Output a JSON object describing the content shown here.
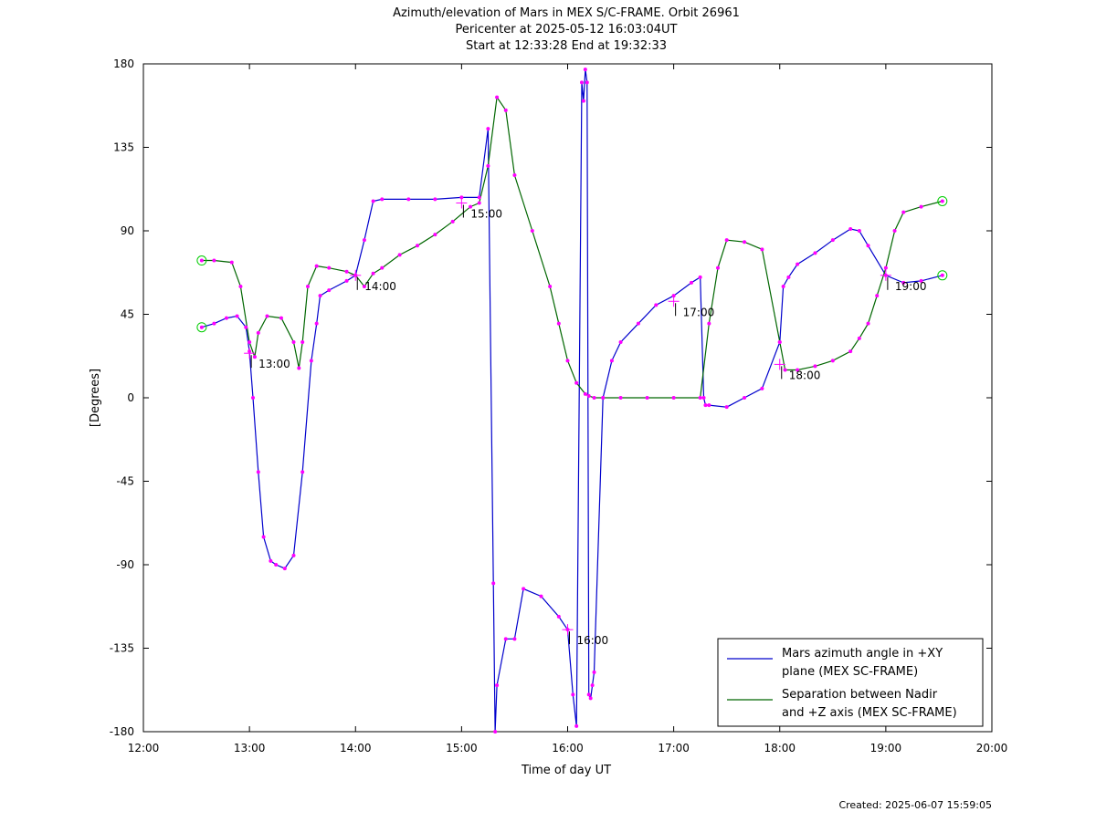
{
  "footer": {
    "created": "Created: 2025-06-07 15:59:05"
  },
  "colors": {
    "azimuth": "#0000cc",
    "separation": "#006600",
    "marker": "#ff00ff",
    "endpoint": "#00cc00"
  },
  "chart_data": {
    "type": "line",
    "title": [
      "Azimuth/elevation of Mars in MEX S/C-FRAME.  Orbit 26961",
      "Pericenter at 2025-05-12 16:03:04UT",
      "Start at 12:33:28 End at 19:32:33"
    ],
    "xlabel": "Time of day UT",
    "ylabel": "[Degrees]",
    "xlim": [
      "12:00",
      "20:00"
    ],
    "ylim": [
      -180,
      180
    ],
    "xticks": [
      "12:00",
      "13:00",
      "14:00",
      "15:00",
      "16:00",
      "17:00",
      "18:00",
      "19:00",
      "20:00"
    ],
    "yticks": [
      "180",
      "135",
      "90",
      "45",
      "0",
      "-45",
      "-90",
      "-135",
      "-180"
    ],
    "grid": false,
    "legend": "bottom-right",
    "series": [
      {
        "name": "Mars azimuth angle in +XY plane (MEX SC-FRAME)",
        "legend_lines": [
          "Mars azimuth angle in +XY",
          "plane (MEX SC-FRAME)"
        ],
        "x": [
          "12:33",
          "12:40",
          "12:47",
          "12:53",
          "12:58",
          "13:00",
          "13:02",
          "13:05",
          "13:08",
          "13:12",
          "13:15",
          "13:20",
          "13:25",
          "13:30",
          "13:35",
          "13:38",
          "13:40",
          "13:45",
          "13:55",
          "14:00",
          "14:05",
          "14:10",
          "14:15",
          "14:30",
          "14:45",
          "15:00",
          "15:10",
          "15:15",
          "15:18",
          "15:19",
          "15:20",
          "15:25",
          "15:30",
          "15:35",
          "15:45",
          "15:55",
          "16:00",
          "16:03",
          "16:05",
          "16:08",
          "16:09",
          "16:10",
          "16:11",
          "16:12",
          "16:13",
          "16:14",
          "16:15",
          "16:20",
          "16:25",
          "16:30",
          "16:40",
          "16:50",
          "17:00",
          "17:10",
          "17:15",
          "17:17",
          "17:18",
          "17:20",
          "17:30",
          "17:40",
          "17:50",
          "18:00",
          "18:02",
          "18:05",
          "18:10",
          "18:20",
          "18:30",
          "18:40",
          "18:45",
          "18:50",
          "19:00",
          "19:10",
          "19:20",
          "19:32"
        ],
        "y": [
          38,
          40,
          43,
          44,
          38,
          25,
          0,
          -40,
          -75,
          -88,
          -90,
          -92,
          -85,
          -40,
          20,
          40,
          55,
          58,
          63,
          66,
          85,
          106,
          107,
          107,
          107,
          108,
          108,
          145,
          -100,
          -180,
          -155,
          -130,
          -130,
          -103,
          -107,
          -118,
          -125,
          -160,
          -177,
          170,
          160,
          177,
          170,
          -160,
          -162,
          -155,
          -148,
          0,
          20,
          30,
          40,
          50,
          55,
          62,
          65,
          0,
          -4,
          -4,
          -5,
          0,
          5,
          30,
          60,
          65,
          72,
          78,
          85,
          91,
          90,
          82,
          66,
          62,
          63,
          66
        ]
      },
      {
        "name": "Separation between Nadir and +Z axis (MEX SC-FRAME)",
        "legend_lines": [
          "Separation between Nadir",
          "and +Z axis (MEX SC-FRAME)"
        ],
        "x": [
          "12:33",
          "12:40",
          "12:50",
          "12:55",
          "13:00",
          "13:03",
          "13:05",
          "13:10",
          "13:18",
          "13:25",
          "13:28",
          "13:30",
          "13:33",
          "13:38",
          "13:45",
          "13:55",
          "14:00",
          "14:05",
          "14:10",
          "14:15",
          "14:25",
          "14:35",
          "14:45",
          "14:55",
          "15:05",
          "15:10",
          "15:15",
          "15:20",
          "15:25",
          "15:30",
          "15:40",
          "15:50",
          "15:55",
          "16:00",
          "16:05",
          "16:10",
          "16:12",
          "16:15",
          "16:20",
          "16:30",
          "16:45",
          "17:00",
          "17:15",
          "17:20",
          "17:25",
          "17:30",
          "17:40",
          "17:50",
          "18:00",
          "18:03",
          "18:10",
          "18:20",
          "18:30",
          "18:40",
          "18:45",
          "18:50",
          "18:55",
          "19:00",
          "19:05",
          "19:10",
          "19:20",
          "19:32"
        ],
        "y": [
          74,
          74,
          73,
          60,
          30,
          22,
          35,
          44,
          43,
          30,
          16,
          30,
          60,
          71,
          70,
          68,
          66,
          60,
          67,
          70,
          77,
          82,
          88,
          95,
          103,
          105,
          125,
          162,
          155,
          120,
          90,
          60,
          40,
          20,
          8,
          2,
          1,
          0,
          0,
          0,
          0,
          0,
          0,
          40,
          70,
          85,
          84,
          80,
          30,
          15,
          15,
          17,
          20,
          25,
          32,
          40,
          55,
          70,
          90,
          100,
          103,
          106
        ]
      }
    ],
    "time_annotations": [
      {
        "label": "13:00",
        "x": "13:00",
        "y": 24
      },
      {
        "label": "14:00",
        "x": "14:00",
        "y": 66
      },
      {
        "label": "15:00",
        "x": "15:00",
        "y": 105
      },
      {
        "label": "16:00",
        "x": "16:00",
        "y": -125
      },
      {
        "label": "17:00",
        "x": "17:00",
        "y": 52
      },
      {
        "label": "18:00",
        "x": "18:00",
        "y": 18
      },
      {
        "label": "19:00",
        "x": "19:00",
        "y": 66
      }
    ]
  }
}
